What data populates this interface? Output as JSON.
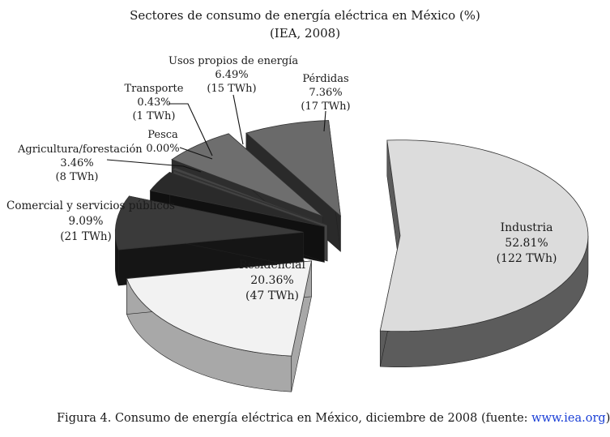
{
  "chart_data": {
    "type": "pie",
    "title": "Sectores de consumo de energía eléctrica en México (%)",
    "subtitle": "(IEA, 2008)",
    "slices": [
      {
        "name": "Industria",
        "percent_label": "52.81%",
        "twh_label": "(122 TWh)",
        "value": 52.81,
        "color": "#dcdcdc",
        "side": "#5c5c5c"
      },
      {
        "name": "Residencial",
        "percent_label": "20.36%",
        "twh_label": "(47 TWh)",
        "value": 20.36,
        "color": "#f2f2f2",
        "side": "#a8a8a8"
      },
      {
        "name": "Comercial y servicios públicos",
        "percent_label": "9.09%",
        "twh_label": "(21 TWh)",
        "value": 9.09,
        "color": "#3a3a3a",
        "side": "#151515"
      },
      {
        "name": "Agricultura/forestación",
        "percent_label": "3.46%",
        "twh_label": "(8 TWh)",
        "value": 3.46,
        "color": "#2a2a2a",
        "side": "#101010"
      },
      {
        "name": "Pesca",
        "percent_label": "0.00%",
        "twh_label": "",
        "value": 0.0,
        "color": "#999999",
        "side": "#444444"
      },
      {
        "name": "Transporte",
        "percent_label": "0.43%",
        "twh_label": "(1 TWh)",
        "value": 0.43,
        "color": "#444444",
        "side": "#1a1a1a"
      },
      {
        "name": "Usos propios de energía",
        "percent_label": "6.49%",
        "twh_label": "(15 TWh)",
        "value": 6.49,
        "color": "#6e6e6e",
        "side": "#2e2e2e"
      },
      {
        "name": "Pérdidas",
        "percent_label": "7.36%",
        "twh_label": "(17 TWh)",
        "value": 7.36,
        "color": "#6a6a6a",
        "side": "#2a2a2a"
      }
    ]
  },
  "caption": {
    "text": "Figura 4. Consumo de energía eléctrica en México, diciembre de 2008 (fuente: ",
    "link": "www.iea.org",
    "end": ")."
  }
}
